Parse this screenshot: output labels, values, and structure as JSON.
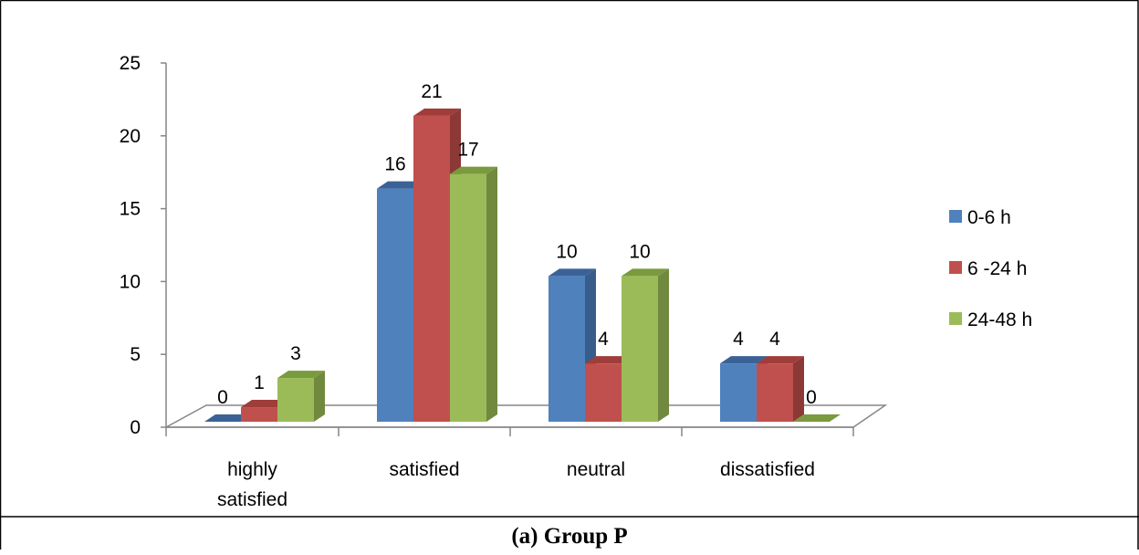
{
  "chart_data": {
    "type": "bar",
    "categories": [
      "highly satisfied",
      "satisfied",
      "neutral",
      "dissatisfied"
    ],
    "category_lines": [
      [
        "highly",
        "satisfied"
      ],
      [
        "satisfied"
      ],
      [
        "neutral"
      ],
      [
        "dissatisfied"
      ]
    ],
    "series": [
      {
        "name": "0-6 h",
        "values": [
          0,
          16,
          10,
          4
        ],
        "color": "#4F81BD",
        "side": "#385D8A",
        "top": "#3A6296"
      },
      {
        "name": "6 -24 h",
        "values": [
          1,
          21,
          4,
          4
        ],
        "color": "#C0504D",
        "side": "#8C3836",
        "top": "#9E3D3A"
      },
      {
        "name": "24-48 h",
        "values": [
          3,
          17,
          10,
          0
        ],
        "color": "#9BBB59",
        "side": "#71893F",
        "top": "#7A9A3E"
      }
    ],
    "ylim": [
      0,
      25
    ],
    "yticks": [
      0,
      5,
      10,
      15,
      20,
      25
    ],
    "legend_position": "right",
    "grid": false,
    "three_d": true
  },
  "caption": "(a) Group P"
}
